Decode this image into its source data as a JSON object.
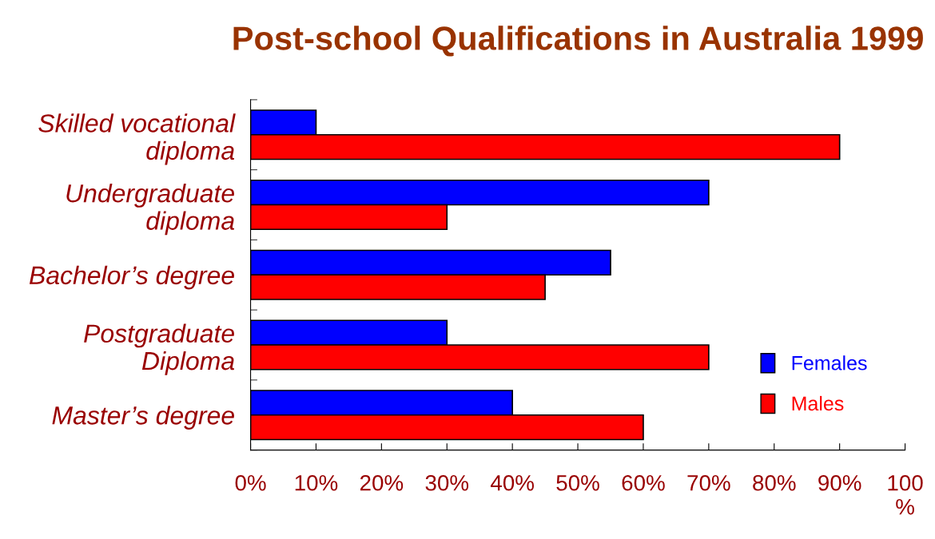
{
  "chart_data": {
    "type": "bar",
    "orientation": "horizontal",
    "title": "Post-school Qualifications in Australia 1999",
    "categories": [
      "Skilled vocational\ndiploma",
      "Undergraduate\ndiploma",
      "Bachelor’s degree",
      "Postgraduate\nDiploma",
      "Master’s degree"
    ],
    "series": [
      {
        "name": "Females",
        "color": "#0000ff",
        "values": [
          10,
          70,
          55,
          30,
          40
        ]
      },
      {
        "name": "Males",
        "color": "#ff0000",
        "values": [
          90,
          30,
          45,
          70,
          60
        ]
      }
    ],
    "xlim": [
      0,
      100
    ],
    "xticks": [
      {
        "value": 0,
        "label": "0%"
      },
      {
        "value": 10,
        "label": "10%"
      },
      {
        "value": 20,
        "label": "20%"
      },
      {
        "value": 30,
        "label": "30%"
      },
      {
        "value": 40,
        "label": "40%"
      },
      {
        "value": 50,
        "label": "50%"
      },
      {
        "value": 60,
        "label": "60%"
      },
      {
        "value": 70,
        "label": "70%"
      },
      {
        "value": 80,
        "label": "80%"
      },
      {
        "value": 90,
        "label": "90%"
      },
      {
        "value": 100,
        "label": "100\n%"
      }
    ],
    "grid": false,
    "legend": "bottom right"
  }
}
